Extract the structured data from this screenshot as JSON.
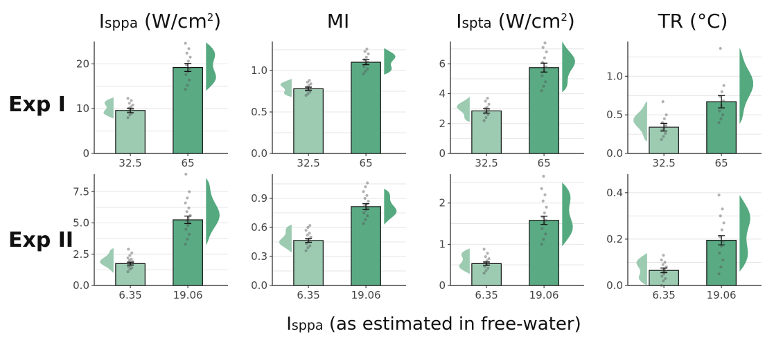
{
  "figure": {
    "column_titles": [
      {
        "main": "I",
        "sub": "sppa",
        "rest": " (W/cm",
        "sup": "2",
        "end": ")"
      },
      {
        "main": "MI",
        "sub": "",
        "rest": "",
        "sup": "",
        "end": ""
      },
      {
        "main": "I",
        "sub": "spta",
        "rest": " (W/cm",
        "sup": "2",
        "end": ")"
      },
      {
        "main": "TR (°C)",
        "sub": "",
        "rest": "",
        "sup": "",
        "end": ""
      }
    ],
    "row_labels": [
      "Exp I",
      "Exp II"
    ],
    "x_caption": {
      "main": "I",
      "sub": "sppa",
      "rest": " (as estimated in free-water)"
    },
    "colors": {
      "light_bar": "#9ccbb2",
      "dark_bar": "#5aaa84",
      "light_violin": "#9ccbb2",
      "dark_violin": "#55a97f"
    }
  },
  "chart_data": [
    {
      "type": "bar",
      "row": "Exp I",
      "column": "Isppa (W/cm2)",
      "categories": [
        "32.5",
        "65"
      ],
      "values": [
        9.6,
        19.2
      ],
      "sem": [
        0.5,
        0.9
      ],
      "ylim": [
        0,
        25
      ],
      "yticks": [
        0,
        10,
        20
      ],
      "ytick_labels": [
        "0",
        "10",
        "20"
      ],
      "minor": [
        5,
        15
      ],
      "points": [
        [
          8.0,
          8.6,
          9.0,
          9.3,
          9.6,
          9.8,
          10.1,
          10.4,
          10.8,
          11.2,
          11.8,
          12.3
        ],
        [
          14.3,
          15.2,
          16.4,
          17.6,
          18.3,
          19.0,
          19.8,
          20.6,
          21.5,
          22.4,
          23.4,
          24.6
        ]
      ],
      "violin_ranges": [
        [
          7.8,
          12.5
        ],
        [
          14.0,
          24.8
        ]
      ]
    },
    {
      "type": "bar",
      "row": "Exp I",
      "column": "MI",
      "categories": [
        "32.5",
        "65"
      ],
      "values": [
        0.78,
        1.1
      ],
      "sem": [
        0.02,
        0.03
      ],
      "ylim": [
        0,
        1.35
      ],
      "yticks": [
        0,
        0.5,
        1.0
      ],
      "ytick_labels": [
        "0.0",
        "0.5",
        "1.0"
      ],
      "minor": [
        0.25,
        0.75,
        1.25
      ],
      "points": [
        [
          0.7,
          0.72,
          0.74,
          0.76,
          0.77,
          0.78,
          0.8,
          0.82,
          0.84,
          0.86,
          0.88
        ],
        [
          0.96,
          0.99,
          1.02,
          1.05,
          1.08,
          1.1,
          1.13,
          1.16,
          1.2,
          1.23,
          1.26
        ]
      ],
      "violin_ranges": [
        [
          0.68,
          0.9
        ],
        [
          0.95,
          1.27
        ]
      ]
    },
    {
      "type": "bar",
      "row": "Exp I",
      "column": "Ispta (W/cm2)",
      "categories": [
        "32.5",
        "65"
      ],
      "values": [
        2.85,
        5.75
      ],
      "sem": [
        0.15,
        0.3
      ],
      "ylim": [
        0,
        7.5
      ],
      "yticks": [
        0,
        2,
        4,
        6
      ],
      "ytick_labels": [
        "0",
        "2",
        "4",
        "6"
      ],
      "minor": [
        1,
        3,
        5,
        7
      ],
      "points": [
        [
          2.2,
          2.4,
          2.6,
          2.7,
          2.8,
          2.9,
          3.0,
          3.1,
          3.3,
          3.5,
          3.7
        ],
        [
          4.2,
          4.5,
          4.8,
          5.2,
          5.5,
          5.8,
          6.1,
          6.4,
          6.8,
          7.1,
          7.4
        ]
      ],
      "violin_ranges": [
        [
          2.1,
          3.8
        ],
        [
          4.1,
          7.5
        ]
      ]
    },
    {
      "type": "bar",
      "row": "Exp I",
      "column": "TR (°C)",
      "categories": [
        "32.5",
        "65"
      ],
      "values": [
        0.34,
        0.67
      ],
      "sem": [
        0.05,
        0.08
      ],
      "ylim": [
        0,
        1.45
      ],
      "yticks": [
        0,
        0.5,
        1.0
      ],
      "ytick_labels": [
        "0.0",
        "0.5",
        "1.0"
      ],
      "minor": [
        0.25,
        0.75,
        1.25
      ],
      "points": [
        [
          0.18,
          0.22,
          0.26,
          0.3,
          0.33,
          0.36,
          0.4,
          0.45,
          0.5,
          0.67
        ],
        [
          0.4,
          0.45,
          0.5,
          0.55,
          0.62,
          0.68,
          0.74,
          0.8,
          0.88,
          1.36
        ]
      ],
      "violin_ranges": [
        [
          0.15,
          0.68
        ],
        [
          0.38,
          1.37
        ]
      ]
    },
    {
      "type": "bar",
      "row": "Exp II",
      "column": "Isppa (W/cm2)",
      "categories": [
        "6.35",
        "19.06"
      ],
      "values": [
        1.75,
        5.25
      ],
      "sem": [
        0.12,
        0.3
      ],
      "ylim": [
        0,
        8.9
      ],
      "yticks": [
        0,
        2.5,
        5.0,
        7.5
      ],
      "ytick_labels": [
        "0.0",
        "2.5",
        "5.0",
        "7.5"
      ],
      "minor": [
        1.25,
        3.75,
        6.25
      ],
      "points": [
        [
          1.1,
          1.3,
          1.4,
          1.5,
          1.6,
          1.7,
          1.75,
          1.8,
          1.9,
          2.0,
          2.1,
          2.2,
          2.4,
          2.6,
          2.9
        ],
        [
          3.3,
          3.7,
          4.1,
          4.5,
          4.8,
          5.0,
          5.2,
          5.4,
          5.6,
          5.9,
          6.2,
          6.6,
          7.0,
          7.5,
          8.9
        ]
      ],
      "violin_ranges": [
        [
          1.0,
          3.0
        ],
        [
          3.2,
          8.6
        ]
      ]
    },
    {
      "type": "bar",
      "row": "Exp II",
      "column": "MI",
      "categories": [
        "6.35",
        "19.06"
      ],
      "values": [
        0.465,
        0.815
      ],
      "sem": [
        0.02,
        0.03
      ],
      "ylim": [
        0,
        1.15
      ],
      "yticks": [
        0,
        0.3,
        0.6,
        0.9
      ],
      "ytick_labels": [
        "0.0",
        "0.3",
        "0.6",
        "0.9"
      ],
      "minor": [
        0.15,
        0.45,
        0.75,
        1.05
      ],
      "points": [
        [
          0.36,
          0.39,
          0.41,
          0.43,
          0.45,
          0.46,
          0.47,
          0.48,
          0.5,
          0.52,
          0.54,
          0.57,
          0.6,
          0.62
        ],
        [
          0.64,
          0.68,
          0.72,
          0.75,
          0.78,
          0.8,
          0.82,
          0.84,
          0.87,
          0.9,
          0.93,
          0.97,
          1.02,
          1.06
        ]
      ],
      "violin_ranges": [
        [
          0.34,
          0.63
        ],
        [
          0.63,
          1.0
        ]
      ]
    },
    {
      "type": "bar",
      "row": "Exp II",
      "column": "Ispta (W/cm2)",
      "categories": [
        "6.35",
        "19.06"
      ],
      "values": [
        0.53,
        1.58
      ],
      "sem": [
        0.04,
        0.1
      ],
      "ylim": [
        0,
        2.7
      ],
      "yticks": [
        0,
        1,
        2
      ],
      "ytick_labels": [
        "0",
        "1",
        "2"
      ],
      "minor": [
        0.5,
        1.5,
        2.5
      ],
      "points": [
        [
          0.3,
          0.36,
          0.42,
          0.46,
          0.5,
          0.53,
          0.56,
          0.6,
          0.65,
          0.7,
          0.78,
          0.88
        ],
        [
          1.0,
          1.12,
          1.25,
          1.38,
          1.5,
          1.58,
          1.66,
          1.76,
          1.9,
          2.05,
          2.2,
          2.35,
          2.65
        ]
      ],
      "violin_ranges": [
        [
          0.28,
          0.9
        ],
        [
          0.95,
          2.5
        ]
      ]
    },
    {
      "type": "bar",
      "row": "Exp II",
      "column": "TR (°C)",
      "categories": [
        "6.35",
        "19.06"
      ],
      "values": [
        0.065,
        0.195
      ],
      "sem": [
        0.01,
        0.02
      ],
      "ylim": [
        0,
        0.48
      ],
      "yticks": [
        0,
        0.2,
        0.4
      ],
      "ytick_labels": [
        "0.0",
        "0.2",
        "0.4"
      ],
      "minor": [
        0.1,
        0.3
      ],
      "points": [
        [
          0.0,
          0.02,
          0.03,
          0.04,
          0.05,
          0.06,
          0.065,
          0.07,
          0.08,
          0.09,
          0.1,
          0.11,
          0.13
        ],
        [
          0.05,
          0.08,
          0.11,
          0.14,
          0.17,
          0.19,
          0.21,
          0.24,
          0.27,
          0.3,
          0.33,
          0.39
        ]
      ],
      "violin_ranges": [
        [
          0.0,
          0.14
        ],
        [
          0.06,
          0.39
        ]
      ]
    }
  ]
}
